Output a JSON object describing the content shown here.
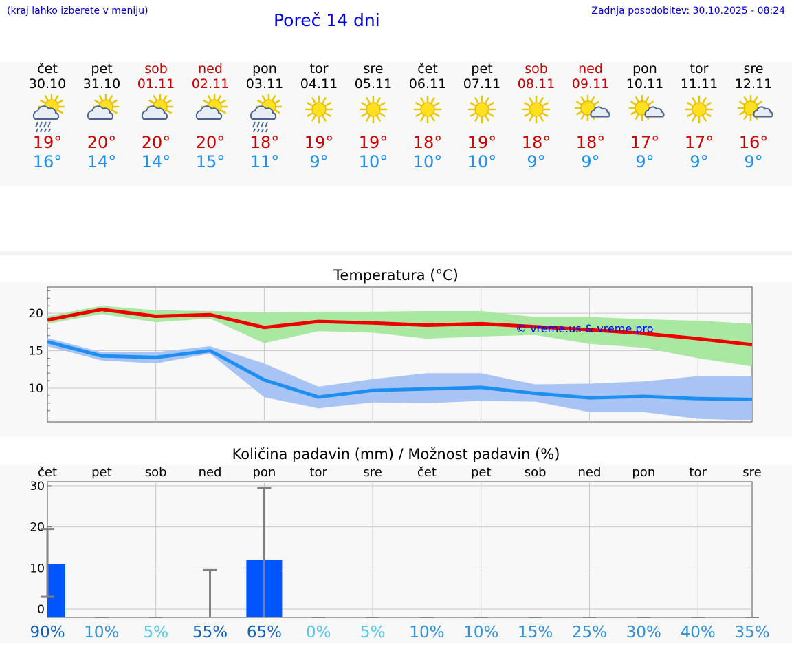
{
  "header": {
    "hint": "(kraj lahko izberete v meniju)",
    "title": "Poreč 14 dni",
    "updated": "Zadnja posodobitev: 30.10.2025 - 08:24"
  },
  "days": [
    {
      "name": "čet",
      "date": "30.10",
      "icon": "sun-cloud-rain-icon",
      "max": "19°",
      "min": "16°",
      "weekend": false
    },
    {
      "name": "pet",
      "date": "31.10",
      "icon": "sun-cloud-icon",
      "max": "20°",
      "min": "14°",
      "weekend": false
    },
    {
      "name": "sob",
      "date": "01.11",
      "icon": "sun-cloud-icon",
      "max": "20°",
      "min": "14°",
      "weekend": true
    },
    {
      "name": "ned",
      "date": "02.11",
      "icon": "sun-cloud-icon",
      "max": "20°",
      "min": "15°",
      "weekend": true
    },
    {
      "name": "pon",
      "date": "03.11",
      "icon": "sun-cloud-rain-icon",
      "max": "18°",
      "min": "11°",
      "weekend": false
    },
    {
      "name": "tor",
      "date": "04.11",
      "icon": "sun-icon",
      "max": "19°",
      "min": "9°",
      "weekend": false
    },
    {
      "name": "sre",
      "date": "05.11",
      "icon": "sun-icon",
      "max": "19°",
      "min": "10°",
      "weekend": false
    },
    {
      "name": "čet",
      "date": "06.11",
      "icon": "sun-icon",
      "max": "18°",
      "min": "10°",
      "weekend": false
    },
    {
      "name": "pet",
      "date": "07.11",
      "icon": "sun-icon",
      "max": "19°",
      "min": "10°",
      "weekend": false
    },
    {
      "name": "sob",
      "date": "08.11",
      "icon": "sun-icon",
      "max": "18°",
      "min": "9°",
      "weekend": true
    },
    {
      "name": "ned",
      "date": "09.11",
      "icon": "sun-small-cloud-icon",
      "max": "18°",
      "min": "9°",
      "weekend": true
    },
    {
      "name": "pon",
      "date": "10.11",
      "icon": "sun-small-cloud-icon",
      "max": "17°",
      "min": "9°",
      "weekend": false
    },
    {
      "name": "tor",
      "date": "11.11",
      "icon": "sun-icon",
      "max": "17°",
      "min": "9°",
      "weekend": false
    },
    {
      "name": "sre",
      "date": "12.11",
      "icon": "sun-small-cloud-icon",
      "max": "16°",
      "min": "9°",
      "weekend": false
    }
  ],
  "watermark": "© vreme.us & vreme.pro",
  "colors": {
    "max": "#ee0000",
    "min": "#1e8ff0",
    "maxBand": "#a8e8a0",
    "minBand": "#a8c4f4",
    "bar": "#0055ff",
    "whisker": "#808080"
  },
  "chart_data": [
    {
      "type": "line",
      "title": "Temperatura (°C)",
      "x": [
        0,
        1,
        2,
        3,
        4,
        5,
        6,
        7,
        8,
        9,
        10,
        11,
        12,
        13
      ],
      "ylim": [
        5.5,
        23.5
      ],
      "yticks": [
        "10",
        "15",
        "20"
      ],
      "series": [
        {
          "name": "max",
          "values": [
            19.1,
            20.5,
            19.6,
            19.8,
            18.1,
            18.9,
            18.7,
            18.4,
            18.6,
            18.2,
            17.8,
            17.3,
            16.6,
            15.8
          ],
          "upper": [
            19.6,
            21.0,
            20.4,
            20.3,
            20.1,
            20.2,
            20.2,
            20.3,
            20.3,
            19.5,
            19.5,
            19.2,
            19.0,
            18.6
          ],
          "lower": [
            18.6,
            19.9,
            18.8,
            19.3,
            16.0,
            17.6,
            17.4,
            16.6,
            16.9,
            17.1,
            15.9,
            15.4,
            14.0,
            12.9
          ]
        },
        {
          "name": "min",
          "values": [
            16.2,
            14.3,
            14.1,
            15.0,
            11.1,
            8.8,
            9.7,
            9.9,
            10.1,
            9.3,
            8.7,
            8.9,
            8.6,
            8.5
          ],
          "upper": [
            16.7,
            14.8,
            14.8,
            15.6,
            13.3,
            10.2,
            11.2,
            12.0,
            12.0,
            10.5,
            10.6,
            10.9,
            11.6,
            11.6
          ],
          "lower": [
            15.6,
            13.7,
            13.3,
            14.6,
            8.8,
            7.3,
            8.1,
            8.0,
            8.3,
            8.2,
            6.8,
            6.8,
            5.9,
            5.7
          ]
        }
      ]
    },
    {
      "type": "bar",
      "title": "Količina padavin (mm) / Možnost padavin (%)",
      "categories": [
        "čet",
        "pet",
        "sob",
        "ned",
        "pon",
        "tor",
        "sre",
        "čet",
        "pet",
        "sob",
        "ned",
        "pon",
        "tor",
        "sre"
      ],
      "values": [
        11,
        0,
        0,
        0,
        12,
        0,
        0,
        0,
        0,
        0,
        0,
        0,
        0,
        0
      ],
      "whisker_low": [
        3,
        0,
        0,
        0,
        0,
        0,
        0,
        0,
        0,
        0,
        0,
        0,
        0,
        0
      ],
      "whisker_high": [
        19.5,
        0,
        0,
        9.5,
        29.5,
        0,
        0,
        0,
        0,
        0,
        0,
        0,
        0,
        0
      ],
      "ylim": [
        -2,
        31
      ],
      "yticks": [
        "0",
        "10",
        "20",
        "30"
      ],
      "probability": [
        "90%",
        "10%",
        "5%",
        "55%",
        "65%",
        "0%",
        "5%",
        "10%",
        "10%",
        "15%",
        "25%",
        "30%",
        "40%",
        "35%"
      ],
      "probability_values": [
        90,
        10,
        5,
        55,
        65,
        0,
        5,
        10,
        10,
        15,
        25,
        30,
        40,
        35
      ]
    }
  ]
}
